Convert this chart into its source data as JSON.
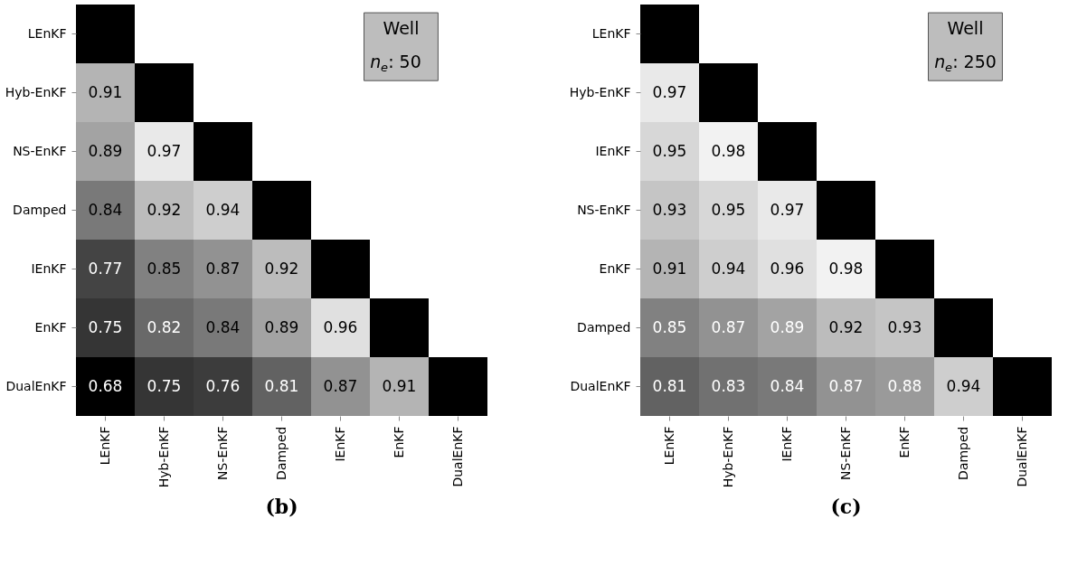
{
  "chart_data": [
    {
      "type": "heatmap",
      "data_labels": true,
      "title": "(b)",
      "annotations": [
        "Well",
        "n$_{e}$:   50"
      ],
      "categories": [
        "LEnKF",
        "Hyb-EnKF",
        "NS-EnKF",
        "Damped",
        "IEnKF",
        "EnKF",
        "DualEnKF"
      ],
      "y_categories": [
        "LEnKF",
        "Hyb-EnKF",
        "NS-EnKF",
        "Damped",
        "IEnKF",
        "EnKF",
        "DualEnKF"
      ],
      "cells": [
        [
          null,
          null,
          null,
          null,
          null,
          null,
          null
        ],
        [
          0.91,
          null,
          null,
          null,
          null,
          null,
          null
        ],
        [
          0.89,
          0.97,
          null,
          null,
          null,
          null,
          null
        ],
        [
          0.84,
          0.92,
          0.94,
          null,
          null,
          null,
          null
        ],
        [
          0.77,
          0.85,
          0.87,
          0.92,
          null,
          null,
          null
        ],
        [
          0.75,
          0.82,
          0.84,
          0.89,
          0.96,
          null,
          null
        ],
        [
          0.68,
          0.75,
          0.76,
          0.81,
          0.87,
          0.91,
          null
        ]
      ]
    },
    {
      "type": "heatmap",
      "data_labels": true,
      "title": "(c)",
      "annotations": [
        "Well",
        "n$_{e}$:   250"
      ],
      "categories": [
        "LEnKF",
        "Hyb-EnKF",
        "IEnKF",
        "NS-EnKF",
        "EnKF",
        "Damped",
        "DualEnKF"
      ],
      "y_categories": [
        "LEnKF",
        "Hyb-EnKF",
        "IEnKF",
        "NS-EnKF",
        "EnKF",
        "Damped",
        "DualEnKF"
      ],
      "cells": [
        [
          null,
          null,
          null,
          null,
          null,
          null,
          null
        ],
        [
          0.97,
          null,
          null,
          null,
          null,
          null,
          null
        ],
        [
          0.95,
          0.98,
          null,
          null,
          null,
          null,
          null
        ],
        [
          0.93,
          0.95,
          0.97,
          null,
          null,
          null,
          null
        ],
        [
          0.91,
          0.94,
          0.96,
          0.98,
          null,
          null,
          null
        ],
        [
          0.85,
          0.87,
          0.89,
          0.92,
          0.93,
          null,
          null
        ],
        [
          0.81,
          0.83,
          0.84,
          0.87,
          0.88,
          0.94,
          null
        ]
      ]
    }
  ]
}
